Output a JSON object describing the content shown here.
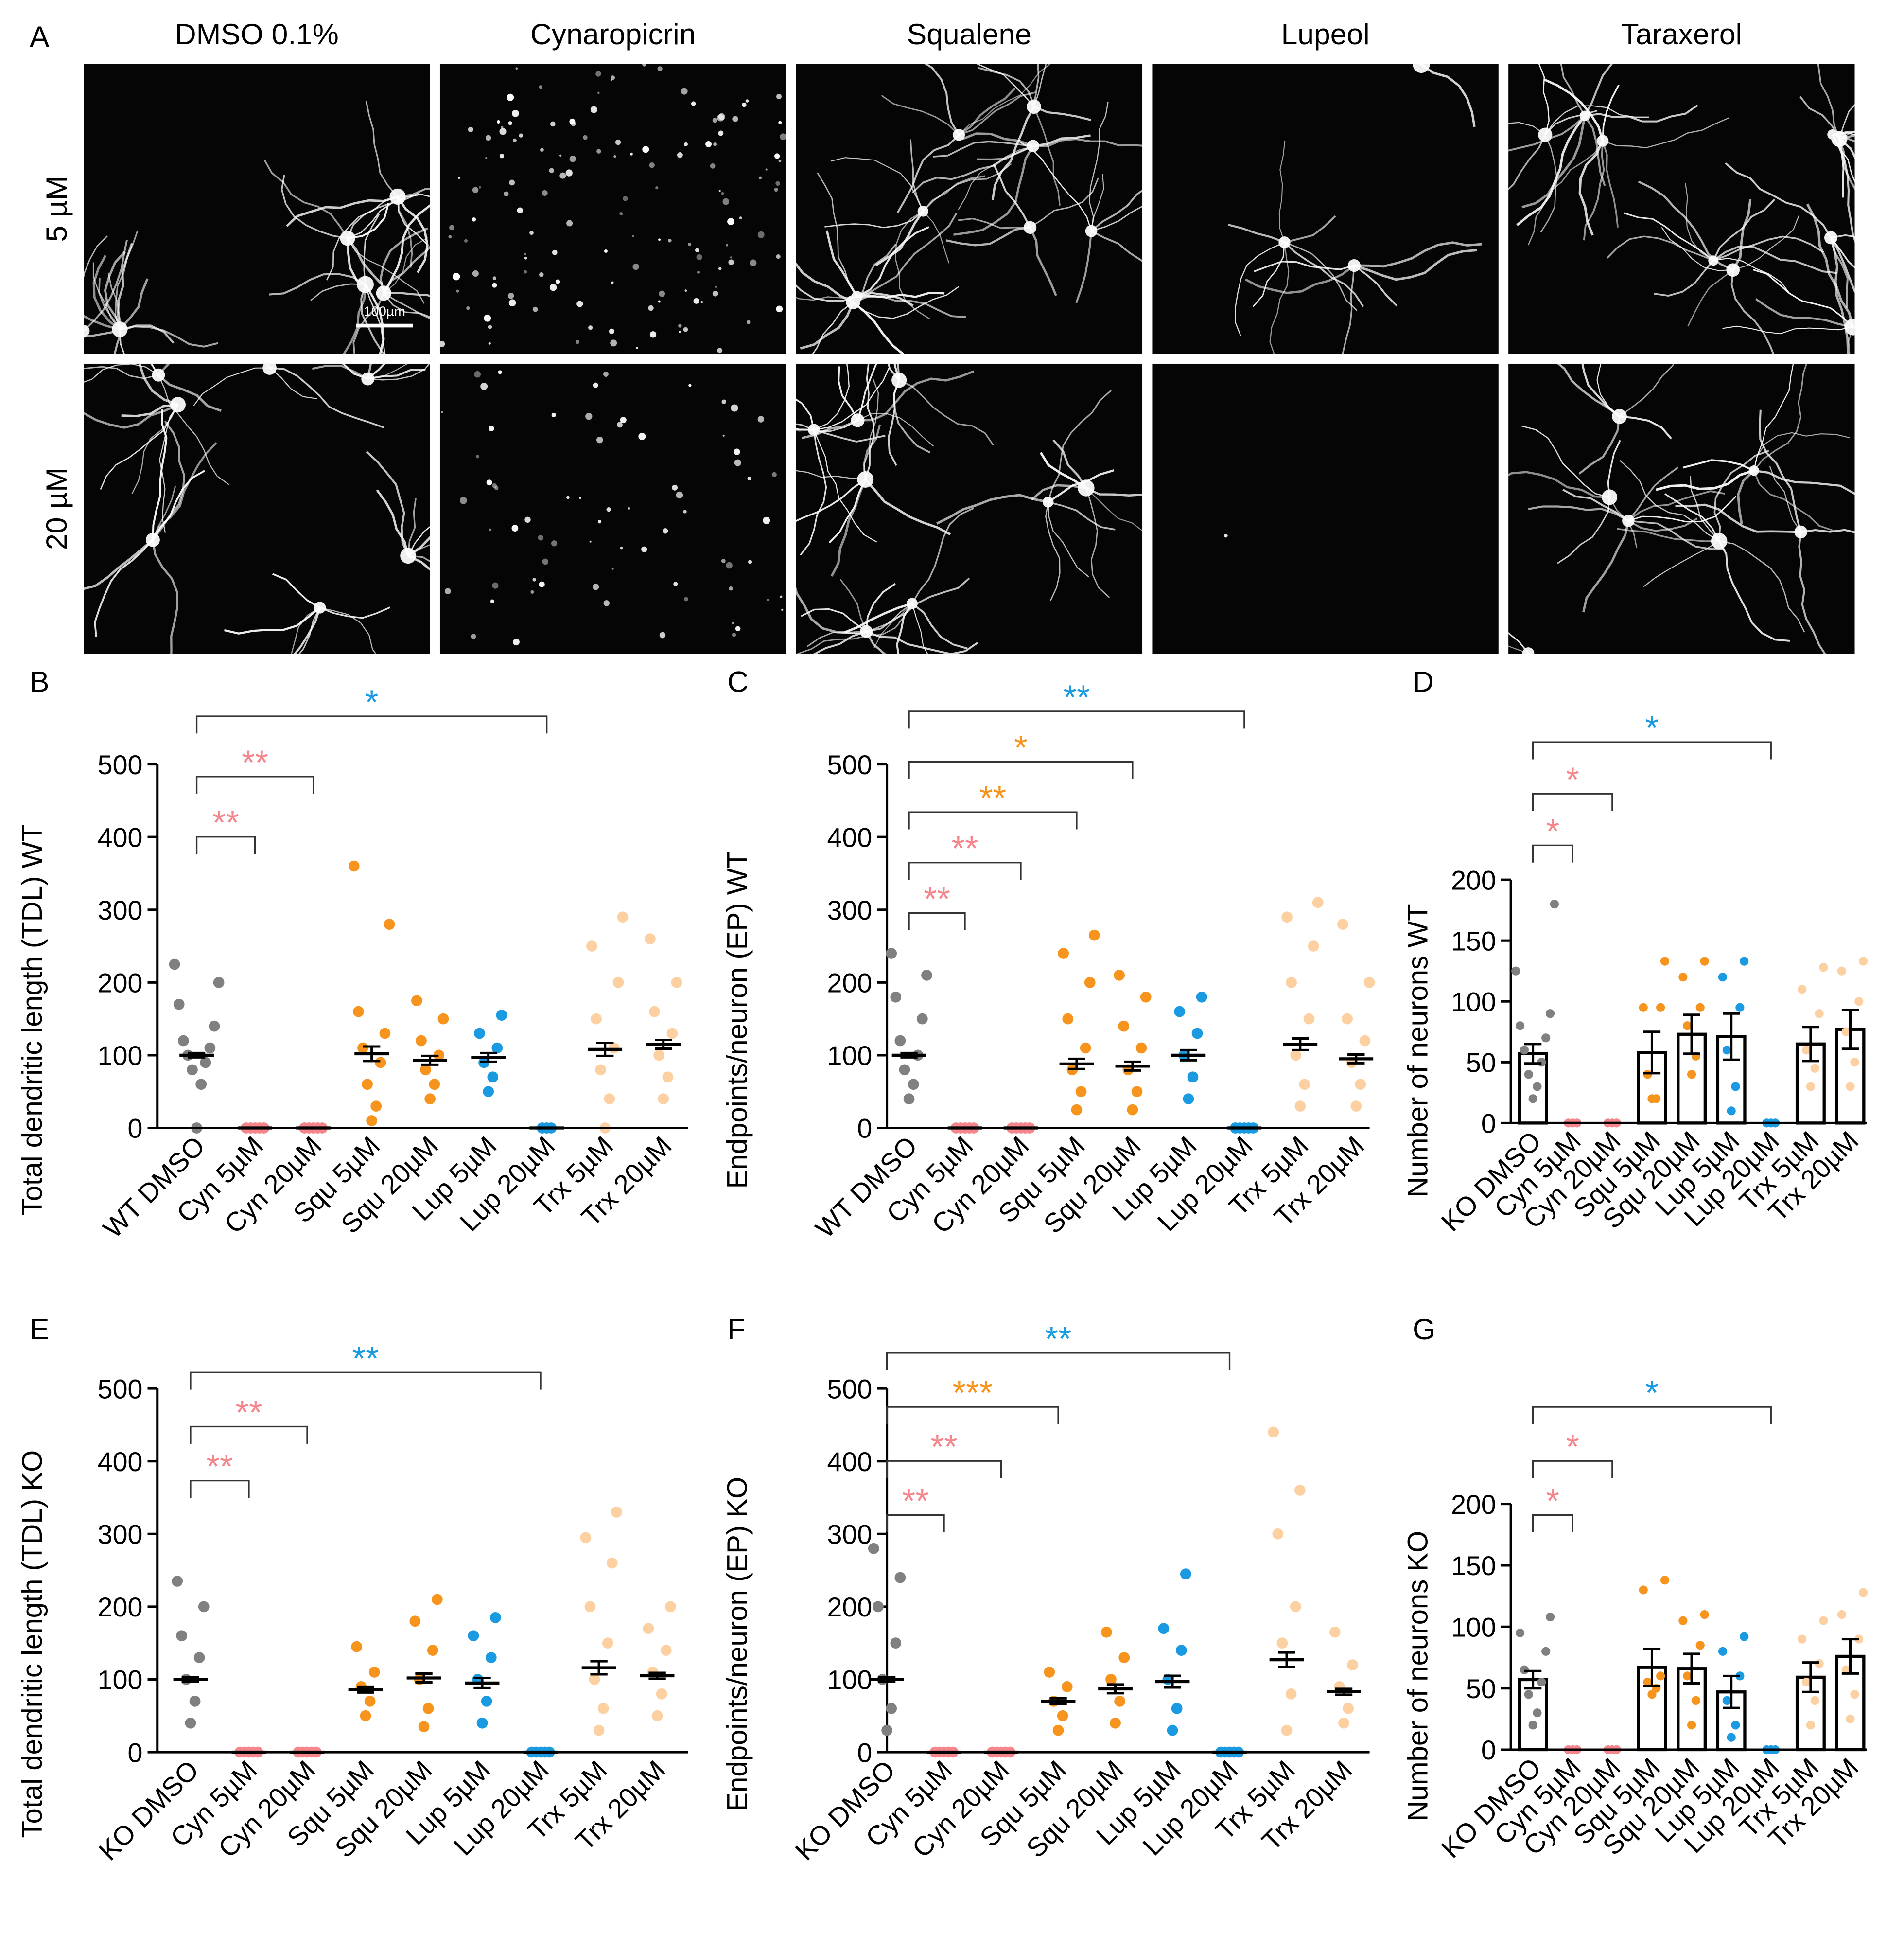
{
  "panel_a": {
    "label": "A",
    "columns": [
      "DMSO 0.1%",
      "Cynaropicrin",
      "Squalene",
      "Lupeol",
      "Taraxerol"
    ],
    "rows": [
      "5 µM",
      "20 µM"
    ],
    "scale_bar": "100µm"
  },
  "chart_data": [
    {
      "type": "dots",
      "panel": "B",
      "ylabel": "Total dendritic length (TDL) WT",
      "categories": [
        "WT DMSO",
        "Cyn 5µM",
        "Cyn 20µM",
        "Squ 5µM",
        "Squ 20µM",
        "Lup 5µM",
        "Lup 20µM",
        "Trx 5µM",
        "Trx 20µM"
      ],
      "colors": [
        "#808080",
        "#f4868c",
        "#f4868c",
        "#f7941d",
        "#f7941d",
        "#1a9ae0",
        "#1a9ae0",
        "#fdd0a2",
        "#fdd0a2"
      ],
      "values": [
        100,
        0,
        0,
        102,
        93,
        97,
        0,
        108,
        115
      ],
      "errors": [
        3,
        0,
        0,
        10,
        6,
        6,
        0,
        9,
        6
      ],
      "points": [
        [
          0,
          60,
          80,
          90,
          100,
          110,
          120,
          140,
          170,
          200,
          225
        ],
        [
          0,
          0,
          0,
          0,
          0
        ],
        [
          0,
          0,
          0,
          0,
          0
        ],
        [
          10,
          30,
          60,
          90,
          110,
          130,
          160,
          280,
          360
        ],
        [
          40,
          60,
          80,
          100,
          120,
          150,
          175
        ],
        [
          50,
          70,
          90,
          110,
          130,
          155
        ],
        [
          0,
          0,
          0
        ],
        [
          0,
          40,
          80,
          110,
          150,
          200,
          250,
          290
        ],
        [
          40,
          70,
          100,
          130,
          160,
          200,
          260
        ]
      ],
      "ylim": [
        0,
        500
      ],
      "yticks": [
        0,
        100,
        200,
        300,
        400,
        500
      ],
      "significance": [
        {
          "to": 1,
          "label": "**",
          "color": "#f4868c"
        },
        {
          "to": 2,
          "label": "**",
          "color": "#f4868c"
        },
        {
          "to": 6,
          "label": "*",
          "color": "#1a9ae0"
        }
      ]
    },
    {
      "type": "dots",
      "panel": "C",
      "ylabel": "Endpoints/neuron (EP) WT",
      "categories": [
        "WT DMSO",
        "Cyn 5µM",
        "Cyn 20µM",
        "Squ 5µM",
        "Squ 20µM",
        "Lup 5µM",
        "Lup 20µM",
        "Trx 5µM",
        "Trx 20µM"
      ],
      "colors": [
        "#808080",
        "#f4868c",
        "#f4868c",
        "#f7941d",
        "#f7941d",
        "#1a9ae0",
        "#1a9ae0",
        "#fdd0a2",
        "#fdd0a2"
      ],
      "values": [
        100,
        0,
        0,
        88,
        85,
        100,
        0,
        115,
        95
      ],
      "errors": [
        3,
        0,
        0,
        7,
        6,
        7,
        0,
        8,
        6
      ],
      "points": [
        [
          40,
          60,
          80,
          100,
          120,
          150,
          180,
          210,
          240
        ],
        [
          0,
          0,
          0,
          0,
          0
        ],
        [
          0,
          0,
          0,
          0,
          0
        ],
        [
          25,
          50,
          80,
          110,
          150,
          200,
          240,
          265
        ],
        [
          25,
          50,
          80,
          110,
          140,
          180,
          210
        ],
        [
          40,
          70,
          100,
          130,
          160,
          180
        ],
        [
          0,
          0,
          0,
          0,
          0
        ],
        [
          30,
          60,
          100,
          150,
          200,
          250,
          290,
          310
        ],
        [
          30,
          60,
          90,
          120,
          150,
          200,
          280
        ]
      ],
      "ylim": [
        0,
        500
      ],
      "yticks": [
        0,
        100,
        200,
        300,
        400,
        500
      ],
      "significance": [
        {
          "to": 1,
          "label": "**",
          "color": "#f4868c"
        },
        {
          "to": 2,
          "label": "**",
          "color": "#f4868c"
        },
        {
          "to": 3,
          "label": "**",
          "color": "#f7941d"
        },
        {
          "to": 4,
          "label": "*",
          "color": "#f7941d"
        },
        {
          "to": 6,
          "label": "**",
          "color": "#1a9ae0"
        }
      ]
    },
    {
      "type": "bar",
      "panel": "D",
      "ylabel": "Number of neurons WT",
      "categories": [
        "KO DMSO",
        "Cyn 5µM",
        "Cyn 20µM",
        "Squ 5µM",
        "Squ 20µM",
        "Lup 5µM",
        "Lup 20µM",
        "Trx 5µM",
        "Trx 20µM"
      ],
      "colors": [
        "#808080",
        "#f4868c",
        "#f4868c",
        "#f7941d",
        "#f7941d",
        "#1a9ae0",
        "#1a9ae0",
        "#fdd0a2",
        "#fdd0a2"
      ],
      "values": [
        57,
        0,
        0,
        58,
        73,
        71,
        0,
        65,
        77
      ],
      "errors": [
        8,
        0,
        0,
        17,
        16,
        19,
        0,
        14,
        16
      ],
      "points": [
        [
          20,
          30,
          40,
          50,
          60,
          70,
          80,
          90,
          125,
          180
        ],
        [
          0,
          0,
          0
        ],
        [
          0,
          0,
          0
        ],
        [
          20,
          20,
          40,
          95,
          95,
          133
        ],
        [
          40,
          55,
          80,
          95,
          120,
          133
        ],
        [
          10,
          30,
          60,
          95,
          120,
          133
        ],
        [
          0,
          0,
          0
        ],
        [
          30,
          45,
          60,
          90,
          110,
          128
        ],
        [
          30,
          50,
          75,
          100,
          125,
          133
        ]
      ],
      "ylim": [
        0,
        200
      ],
      "yticks": [
        0,
        50,
        100,
        150,
        200
      ],
      "significance": [
        {
          "to": 1,
          "label": "*",
          "color": "#f4868c"
        },
        {
          "to": 2,
          "label": "*",
          "color": "#f4868c"
        },
        {
          "to": 6,
          "label": "*",
          "color": "#1a9ae0"
        }
      ]
    },
    {
      "type": "dots",
      "panel": "E",
      "ylabel": "Total dendritic length (TDL) KO",
      "categories": [
        "KO DMSO",
        "Cyn 5µM",
        "Cyn 20µM",
        "Squ 5µM",
        "Squ 20µM",
        "Lup 5µM",
        "Lup 20µM",
        "Trx 5µM",
        "Trx 20µM"
      ],
      "colors": [
        "#808080",
        "#f4868c",
        "#f4868c",
        "#f7941d",
        "#f7941d",
        "#1a9ae0",
        "#1a9ae0",
        "#fdd0a2",
        "#fdd0a2"
      ],
      "values": [
        100,
        0,
        0,
        86,
        102,
        95,
        0,
        116,
        105
      ],
      "errors": [
        3,
        0,
        0,
        4,
        6,
        7,
        0,
        9,
        4
      ],
      "points": [
        [
          40,
          70,
          100,
          130,
          160,
          200,
          235
        ],
        [
          0,
          0,
          0,
          0,
          0
        ],
        [
          0,
          0,
          0,
          0,
          0
        ],
        [
          50,
          70,
          90,
          110,
          145
        ],
        [
          35,
          60,
          100,
          140,
          180,
          210
        ],
        [
          40,
          70,
          100,
          130,
          160,
          185
        ],
        [
          0,
          0,
          0,
          0,
          0
        ],
        [
          30,
          60,
          100,
          150,
          200,
          260,
          295,
          330
        ],
        [
          50,
          80,
          110,
          140,
          170,
          200
        ]
      ],
      "ylim": [
        0,
        500
      ],
      "yticks": [
        0,
        100,
        200,
        300,
        400,
        500
      ],
      "significance": [
        {
          "to": 1,
          "label": "**",
          "color": "#f4868c"
        },
        {
          "to": 2,
          "label": "**",
          "color": "#f4868c"
        },
        {
          "to": 6,
          "label": "**",
          "color": "#1a9ae0"
        }
      ]
    },
    {
      "type": "dots",
      "panel": "F",
      "ylabel": "Endpoints/neuron (EP) KO",
      "categories": [
        "KO DMSO",
        "Cyn 5µM",
        "Cyn 20µM",
        "Squ 5µM",
        "Squ 20µM",
        "Lup 5µM",
        "Lup 20µM",
        "Trx 5µM",
        "Trx 20µM"
      ],
      "colors": [
        "#808080",
        "#f4868c",
        "#f4868c",
        "#f7941d",
        "#f7941d",
        "#1a9ae0",
        "#1a9ae0",
        "#fdd0a2",
        "#fdd0a2"
      ],
      "values": [
        100,
        0,
        0,
        70,
        87,
        97,
        0,
        127,
        83
      ],
      "errors": [
        3,
        0,
        0,
        4,
        6,
        8,
        0,
        10,
        4
      ],
      "points": [
        [
          30,
          60,
          100,
          150,
          200,
          240,
          280
        ],
        [
          0,
          0,
          0,
          0,
          0
        ],
        [
          0,
          0,
          0,
          0,
          0
        ],
        [
          30,
          50,
          70,
          90,
          110
        ],
        [
          40,
          70,
          100,
          130,
          165
        ],
        [
          30,
          60,
          100,
          140,
          170,
          245
        ],
        [
          0,
          0,
          0,
          0,
          0
        ],
        [
          30,
          80,
          150,
          200,
          300,
          360,
          440
        ],
        [
          40,
          60,
          90,
          120,
          165
        ]
      ],
      "ylim": [
        0,
        500
      ],
      "yticks": [
        0,
        100,
        200,
        300,
        400,
        500
      ],
      "significance": [
        {
          "to": 1,
          "label": "**",
          "color": "#f4868c"
        },
        {
          "to": 2,
          "label": "**",
          "color": "#f4868c"
        },
        {
          "to": 3,
          "label": "***",
          "color": "#f7941d"
        },
        {
          "to": 6,
          "label": "**",
          "color": "#1a9ae0"
        }
      ]
    },
    {
      "type": "bar",
      "panel": "G",
      "ylabel": "Number of neurons KO",
      "categories": [
        "KO DMSO",
        "Cyn 5µM",
        "Cyn 20µM",
        "Squ 5µM",
        "Squ 20µM",
        "Lup 5µM",
        "Lup 20µM",
        "Trx 5µM",
        "Trx 20µM"
      ],
      "colors": [
        "#808080",
        "#f4868c",
        "#f4868c",
        "#f7941d",
        "#f7941d",
        "#1a9ae0",
        "#1a9ae0",
        "#fdd0a2",
        "#fdd0a2"
      ],
      "values": [
        57,
        0,
        0,
        67,
        66,
        47,
        0,
        59,
        76
      ],
      "errors": [
        7,
        0,
        0,
        15,
        12,
        13,
        0,
        12,
        14
      ],
      "points": [
        [
          20,
          30,
          45,
          55,
          65,
          80,
          95,
          108
        ],
        [
          0,
          0,
          0
        ],
        [
          0,
          0,
          0
        ],
        [
          45,
          50,
          55,
          60,
          130,
          138
        ],
        [
          20,
          40,
          60,
          85,
          105,
          110
        ],
        [
          10,
          20,
          40,
          60,
          80,
          92
        ],
        [
          0,
          0,
          0
        ],
        [
          20,
          40,
          55,
          70,
          90,
          105
        ],
        [
          25,
          45,
          65,
          90,
          110,
          128
        ]
      ],
      "ylim": [
        0,
        200
      ],
      "yticks": [
        0,
        50,
        100,
        150,
        200
      ],
      "significance": [
        {
          "to": 1,
          "label": "*",
          "color": "#f4868c"
        },
        {
          "to": 2,
          "label": "*",
          "color": "#f4868c"
        },
        {
          "to": 6,
          "label": "*",
          "color": "#1a9ae0"
        }
      ]
    }
  ]
}
